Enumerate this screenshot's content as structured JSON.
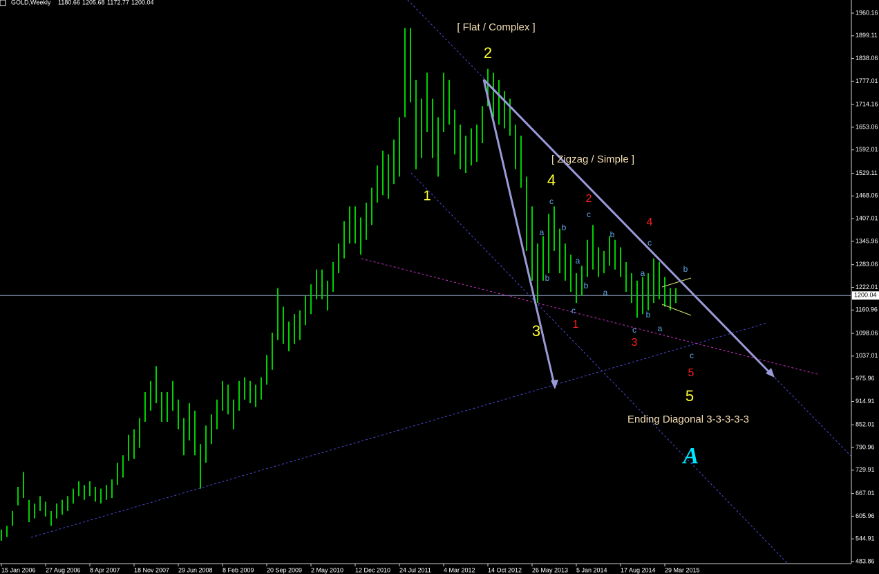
{
  "chart_data": {
    "type": "ohlc-range",
    "symbol": "GOLD,Weekly",
    "header_values": [
      1180.66,
      1205.68,
      1172.77,
      1200.04
    ],
    "color": "#00d000",
    "background": "#000000",
    "categories": [
      "15 Jan 2006",
      null,
      null,
      null,
      null,
      null,
      null,
      null,
      "27 Aug 2006",
      null,
      null,
      null,
      null,
      null,
      null,
      null,
      "8 Apr 2007",
      null,
      null,
      null,
      null,
      null,
      null,
      null,
      "18 Nov 2007",
      null,
      null,
      null,
      null,
      null,
      null,
      null,
      "29 Jun 2008",
      null,
      null,
      null,
      null,
      null,
      null,
      null,
      "8 Feb 2009",
      null,
      null,
      null,
      null,
      null,
      null,
      null,
      "20 Sep 2009",
      null,
      null,
      null,
      null,
      null,
      null,
      null,
      "2 May 2010",
      null,
      null,
      null,
      null,
      null,
      null,
      null,
      "12 Dec 2010",
      null,
      null,
      null,
      null,
      null,
      null,
      null,
      "24 Jul 2011",
      null,
      null,
      null,
      null,
      null,
      null,
      null,
      "4 Mar 2012",
      null,
      null,
      null,
      null,
      null,
      null,
      null,
      "14 Oct 2012",
      null,
      null,
      null,
      null,
      null,
      null,
      null,
      "26 May 2013",
      null,
      null,
      null,
      null,
      null,
      null,
      null,
      "5 Jan 2014",
      null,
      null,
      null,
      null,
      null,
      null,
      null,
      "17 Aug 2014",
      null,
      null,
      null,
      null,
      null,
      null,
      null,
      "29 Mar 2015",
      null,
      null
    ],
    "low": [
      540,
      550,
      580,
      635,
      655,
      590,
      600,
      620,
      605,
      580,
      600,
      610,
      620,
      640,
      660,
      650,
      660,
      645,
      640,
      650,
      655,
      690,
      710,
      755,
      760,
      790,
      860,
      890,
      910,
      860,
      860,
      890,
      840,
      770,
      810,
      770,
      680,
      750,
      800,
      840,
      890,
      880,
      840,
      890,
      920,
      910,
      900,
      920,
      960,
      1000,
      1080,
      1070,
      1050,
      1070,
      1080,
      1120,
      1150,
      1190,
      1190,
      1160,
      1210,
      1260,
      1300,
      1340,
      1340,
      1310,
      1350,
      1390,
      1450,
      1470,
      1460,
      1500,
      1520,
      1680,
      1720,
      1540,
      1570,
      1640,
      1570,
      1520,
      1640,
      1660,
      1580,
      1540,
      1530,
      1550,
      1560,
      1610,
      1710,
      1680,
      1660,
      1650,
      1630,
      1540,
      1490,
      1320,
      1240,
      1180,
      1240,
      1260,
      1320,
      1260,
      1240,
      1210,
      1180,
      1200,
      1250,
      1270,
      1250,
      1260,
      1280,
      1270,
      1250,
      1210,
      1180,
      1140,
      1150,
      1160,
      1180,
      1190,
      1170,
      1160,
      1180
    ],
    "high": [
      570,
      580,
      620,
      685,
      725,
      650,
      640,
      660,
      645,
      620,
      640,
      650,
      660,
      680,
      700,
      690,
      700,
      685,
      680,
      690,
      705,
      750,
      770,
      825,
      840,
      870,
      940,
      970,
      1010,
      940,
      940,
      970,
      920,
      870,
      910,
      890,
      800,
      850,
      880,
      920,
      970,
      960,
      920,
      970,
      980,
      970,
      960,
      980,
      1040,
      1100,
      1220,
      1170,
      1130,
      1150,
      1160,
      1200,
      1230,
      1270,
      1270,
      1240,
      1290,
      1340,
      1400,
      1440,
      1440,
      1410,
      1450,
      1490,
      1550,
      1590,
      1580,
      1620,
      1680,
      1920,
      1920,
      1780,
      1730,
      1800,
      1730,
      1680,
      1800,
      1780,
      1700,
      1660,
      1630,
      1650,
      1660,
      1710,
      1810,
      1800,
      1780,
      1750,
      1730,
      1660,
      1630,
      1520,
      1440,
      1340,
      1360,
      1420,
      1440,
      1380,
      1340,
      1310,
      1260,
      1280,
      1350,
      1390,
      1330,
      1320,
      1360,
      1350,
      1330,
      1290,
      1260,
      1240,
      1250,
      1260,
      1300,
      1290,
      1250,
      1220,
      1220
    ],
    "ylim": [
      478.27,
      1995.53
    ],
    "yticks": [
      1960.16,
      1899.11,
      1838.06,
      1777.01,
      1714.16,
      1653.06,
      1592.01,
      1529.11,
      1468.06,
      1407.01,
      1345.96,
      1283.06,
      1222.01,
      1160.96,
      1098.06,
      1037.01,
      975.96,
      914.91,
      852.01,
      790.96,
      729.91,
      667.01,
      605.96,
      544.91,
      483.86
    ],
    "current_price": 1200.04,
    "annotations": [
      {
        "text": "[ Flat / Complex ]",
        "color": "#f5deb3"
      },
      {
        "text": "2",
        "color": "#ffff33"
      },
      {
        "text": "1",
        "color": "#ffff33"
      },
      {
        "text": "[ Zigzag / Simple ]",
        "color": "#f5deb3"
      },
      {
        "text": "4",
        "color": "#ffff33"
      },
      {
        "text": "3",
        "color": "#ffff33"
      },
      {
        "text": "5",
        "color": "#ffff33"
      },
      {
        "text": "Ending Diagonal 3-3-3-3-3",
        "color": "#f5deb3"
      },
      {
        "text": "A",
        "color": "#00e5ff"
      },
      {
        "text": "2",
        "color": "#ff2020"
      },
      {
        "text": "4",
        "color": "#ff2020"
      },
      {
        "text": "1",
        "color": "#ff2020"
      },
      {
        "text": "3",
        "color": "#ff2020"
      },
      {
        "text": "5",
        "color": "#ff2020"
      },
      {
        "text": "c",
        "color": "#5fa8e8"
      },
      {
        "text": "c",
        "color": "#5fa8e8"
      },
      {
        "text": "a",
        "color": "#5fa8e8"
      },
      {
        "text": "b",
        "color": "#5fa8e8"
      },
      {
        "text": "b",
        "color": "#5fa8e8"
      },
      {
        "text": "b",
        "color": "#5fa8e8"
      },
      {
        "text": "a",
        "color": "#5fa8e8"
      },
      {
        "text": "c",
        "color": "#5fa8e8"
      },
      {
        "text": "a",
        "color": "#5fa8e8"
      },
      {
        "text": "b",
        "color": "#5fa8e8"
      },
      {
        "text": "c",
        "color": "#5fa8e8"
      },
      {
        "text": "a",
        "color": "#5fa8e8"
      },
      {
        "text": "b",
        "color": "#5fa8e8"
      },
      {
        "text": "c",
        "color": "#5fa8e8"
      },
      {
        "text": "a",
        "color": "#5fa8e8"
      },
      {
        "text": "b",
        "color": "#5fa8e8"
      },
      {
        "text": "c",
        "color": "#5fa8e8"
      }
    ]
  }
}
